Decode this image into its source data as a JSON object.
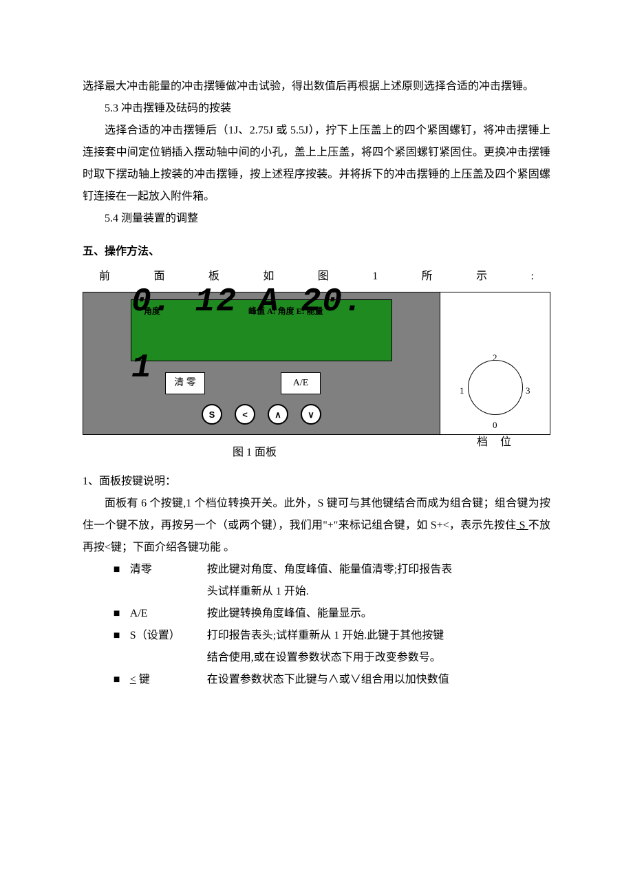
{
  "intro": {
    "p1": "选择最大冲击能量的冲击摆锤做冲击试验，得出数值后再根据上述原则选择合适的冲击摆锤。",
    "s53_title": "5.3 冲击摆锤及砝码的按装",
    "s53_body": "选择合适的冲击摆锤后（1J、2.75J 或 5.5J），拧下上压盖上的四个紧固螺钉，将冲击摆锤上连接套中间定位销插入摆动轴中间的小孔，盖上上压盖，将四个紧固螺钉紧固住。更换冲击摆锤时取下摆动轴上按装的冲击摆锤，按上述程序按装。并将拆下的冲击摆锤的上压盖及四个紧固螺钉连接在一起放入附件箱。",
    "s54_title": "5.4 测量装置的调整"
  },
  "section5": {
    "heading": "五、操作方法、",
    "spread": [
      "前",
      "面",
      "板",
      "如",
      "图",
      "1",
      "所",
      "示",
      ":"
    ]
  },
  "panel": {
    "lcd": {
      "label_left": "角度",
      "label_right": "峰值 A: 角度  E: 能量",
      "digits": "0. 12  A 20. 1",
      "bg_color": "#1f8a1f",
      "digit_color": "#000000"
    },
    "buttons": {
      "clear": "清 零",
      "ae": "A/E",
      "s": "S",
      "left": "<",
      "up": "∧",
      "down": "∨"
    },
    "dial": {
      "n0": "0",
      "n1": "1",
      "n2": "2",
      "n3": "3",
      "label": "档位"
    },
    "panel_bg": "#808080"
  },
  "caption": "图 1  面板",
  "explain": {
    "h1": "1、面板按键说明：",
    "p1a": "面板有 6 个按键,1 个档位转换开关。此外，S 键可与其他键结合而成为组合键；组合键为按住一个键不放，再按另一个（或两个键），我们用\"+\"来标记组合键，如 S+<，表示先按住",
    "p1_s": " S ",
    "p1b": "不放再按<键；下面介绍各键功能 。"
  },
  "keys": {
    "bullet": "■",
    "clear": {
      "name": "清零",
      "desc": "按此键对角度、角度峰值、能量值清零;打印报告表",
      "cont": "头试样重新从 1 开始."
    },
    "ae": {
      "name": "A/E",
      "desc": "按此键转换角度峰值、能量显示。"
    },
    "s": {
      "name": "S（设置）",
      "desc": "打印报告表头;试样重新从 1 开始.此键于其他按键",
      "cont": "结合使用,或在设置参数状态下用于改变参数号。"
    },
    "lt": {
      "name_pre": "",
      "name_u": "<",
      "name_post": " 键",
      "desc": "在设置参数状态下此键与∧或∨组合用以加快数值"
    }
  }
}
